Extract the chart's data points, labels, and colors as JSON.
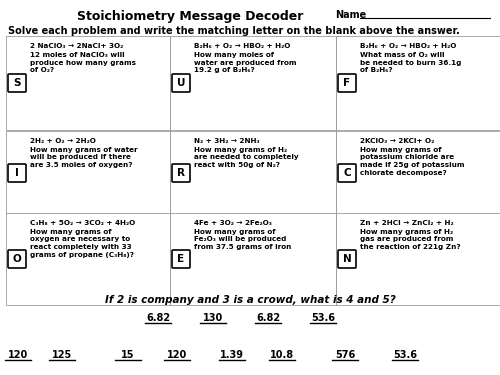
{
  "title": "Stoichiometry Message Decoder",
  "name_label": "Name",
  "instruction": "Solve each problem and write the matching letter on the blank above the answer.",
  "boxes": [
    {
      "letter": "S",
      "equation": "2 NaClO₃ → 2NaCl+ 3O₂",
      "question": "12 moles of NaClO₃ will\nproduce how many grams\nof O₂?",
      "col": 0,
      "row": 0
    },
    {
      "letter": "U",
      "equation": "B₂H₆ + O₂ → HBO₂ + H₂O",
      "question": "How many moles of\nwater are produced from\n19.2 g of B₂H₆?",
      "col": 1,
      "row": 0
    },
    {
      "letter": "F",
      "equation": "B₂H₆ + O₂ → HBO₂ + H₂O",
      "question": "What mass of O₂ will\nbe needed to burn 36.1g\nof B₂H₆?",
      "col": 2,
      "row": 0
    },
    {
      "letter": "I",
      "equation": "2H₂ + O₂ → 2H₂O",
      "question": "How many grams of water\nwill be produced if there\nare 3.5 moles of oxygen?",
      "col": 0,
      "row": 1
    },
    {
      "letter": "R",
      "equation": "N₂ + 3H₂ → 2NH₃",
      "question": "How many grams of H₂\nare needed to completely\nreact with 50g of N₂?",
      "col": 1,
      "row": 1
    },
    {
      "letter": "C",
      "equation": "2KClO₃ → 2KCl+ O₂",
      "question": "How many grams of\npotassium chloride are\nmade if 25g of potassium\nchlorate decompose?",
      "col": 2,
      "row": 1
    },
    {
      "letter": "O",
      "equation": "C₃H₈ + 5O₂ → 3CO₂ + 4H₂O",
      "question": "How many grams of\noxygen are necessary to\nreact completely with 33\ngrams of propane (C₃H₈)?",
      "col": 0,
      "row": 2
    },
    {
      "letter": "E",
      "equation": "4Fe + 3O₂ → 2Fe₂O₃",
      "question": "How many grams of\nFe₂O₃ will be produced\nfrom 37.5 grams of iron",
      "col": 1,
      "row": 2
    },
    {
      "letter": "N",
      "equation": "Zn + 2HCl → ZnCl₂ + H₂",
      "question": "How many grams of H₂\ngas are produced from\nthe reaction of 221g Zn?",
      "col": 2,
      "row": 2
    }
  ],
  "riddle": "If 2 is company and 3 is a crowd, what is 4 and 5?",
  "answer_row1": [
    "6.82",
    "130",
    "6.82",
    "53.6"
  ],
  "answer_row2": [
    "120",
    "125",
    "15",
    "120",
    "1.39",
    "10.8",
    "576",
    "53.6"
  ],
  "bg_color": "#ffffff",
  "text_color": "#000000"
}
